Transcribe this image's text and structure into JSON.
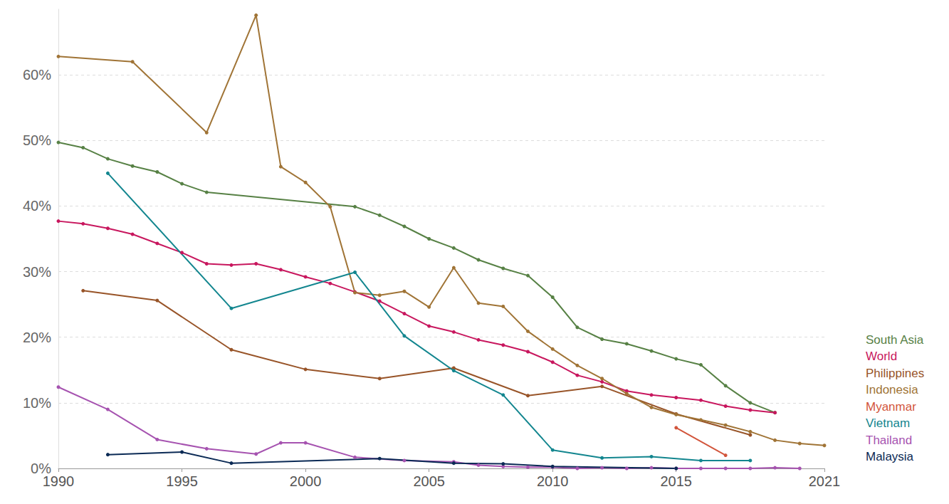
{
  "chart_data": {
    "type": "line",
    "xlim": [
      1990,
      2021
    ],
    "xticks": [
      1990,
      1995,
      2000,
      2005,
      2010,
      2015,
      2021
    ],
    "ylim": [
      0,
      70
    ],
    "yticks": [
      {
        "value": 0,
        "label": "0%"
      },
      {
        "value": 10,
        "label": "10%"
      },
      {
        "value": 20,
        "label": "20%"
      },
      {
        "value": 30,
        "label": "30%"
      },
      {
        "value": 40,
        "label": "40%"
      },
      {
        "value": 50,
        "label": "50%"
      },
      {
        "value": 60,
        "label": "60%"
      }
    ],
    "grid": true,
    "legend": "right",
    "marker": "circle",
    "series": [
      {
        "name": "South Asia",
        "color": "#578145",
        "x": [
          1990,
          1991,
          1992,
          1993,
          1994,
          1995,
          1996,
          2002,
          2003,
          2004,
          2005,
          2006,
          2007,
          2008,
          2009,
          2010,
          2011,
          2012,
          2013,
          2014,
          2015,
          2016,
          2017,
          2018,
          2019
        ],
        "values": [
          49.7,
          48.9,
          47.2,
          46.1,
          45.2,
          43.4,
          42.1,
          39.9,
          38.6,
          36.9,
          35.0,
          33.6,
          31.8,
          30.5,
          29.4,
          26.1,
          21.5,
          19.7,
          19.0,
          17.9,
          16.7,
          15.8,
          12.6,
          10.0,
          8.5
        ]
      },
      {
        "name": "World",
        "color": "#c8175e",
        "x": [
          1990,
          1991,
          1992,
          1993,
          1994,
          1995,
          1996,
          1997,
          1998,
          1999,
          2000,
          2001,
          2002,
          2003,
          2004,
          2005,
          2006,
          2007,
          2008,
          2009,
          2010,
          2011,
          2012,
          2013,
          2014,
          2015,
          2016,
          2017,
          2018,
          2019
        ],
        "values": [
          37.7,
          37.3,
          36.6,
          35.7,
          34.3,
          32.9,
          31.2,
          31.0,
          31.2,
          30.3,
          29.2,
          28.2,
          26.9,
          25.5,
          23.6,
          21.7,
          20.8,
          19.6,
          18.8,
          17.8,
          16.2,
          14.2,
          13.2,
          11.8,
          11.2,
          10.8,
          10.4,
          9.5,
          8.9,
          8.5
        ]
      },
      {
        "name": "Philippines",
        "color": "#985428",
        "x": [
          1991,
          1994,
          1997,
          2000,
          2003,
          2006,
          2009,
          2012,
          2015,
          2018
        ],
        "values": [
          27.1,
          25.6,
          18.1,
          15.1,
          13.7,
          15.3,
          11.1,
          12.5,
          8.3,
          5.1
        ]
      },
      {
        "name": "Indonesia",
        "color": "#a07436",
        "x": [
          1990,
          1993,
          1996,
          1998,
          1999,
          2000,
          2001,
          2002,
          2003,
          2004,
          2005,
          2006,
          2007,
          2008,
          2009,
          2010,
          2011,
          2012,
          2013,
          2014,
          2015,
          2016,
          2017,
          2018,
          2019,
          2020,
          2021
        ],
        "values": [
          62.8,
          62.0,
          51.2,
          69.1,
          46.0,
          43.6,
          39.9,
          26.8,
          26.4,
          27.0,
          24.6,
          30.6,
          25.2,
          24.7,
          20.9,
          18.2,
          15.7,
          13.7,
          11.4,
          9.3,
          8.2,
          7.4,
          6.6,
          5.6,
          4.3,
          3.8,
          3.5
        ]
      },
      {
        "name": "Myanmar",
        "color": "#d2553b",
        "x": [
          2015,
          2017
        ],
        "values": [
          6.2,
          2.0
        ]
      },
      {
        "name": "Vietnam",
        "color": "#13868f",
        "x": [
          1992,
          1997,
          2002,
          2004,
          2006,
          2008,
          2010,
          2012,
          2014,
          2016,
          2018
        ],
        "values": [
          45.0,
          24.4,
          29.9,
          20.2,
          14.9,
          11.2,
          2.8,
          1.6,
          1.8,
          1.2,
          1.2
        ]
      },
      {
        "name": "Thailand",
        "color": "#a653b0",
        "x": [
          1990,
          1992,
          1994,
          1996,
          1998,
          1999,
          2000,
          2002,
          2004,
          2006,
          2007,
          2008,
          2009,
          2010,
          2011,
          2012,
          2013,
          2014,
          2015,
          2016,
          2017,
          2018,
          2019,
          2020
        ],
        "values": [
          12.4,
          9.0,
          4.4,
          3.0,
          2.2,
          3.9,
          3.9,
          1.7,
          1.2,
          1.0,
          0.5,
          0.3,
          0.2,
          0.2,
          0.0,
          0.1,
          0.0,
          0.1,
          0.0,
          0.0,
          0.0,
          0.0,
          0.1,
          0.0
        ]
      },
      {
        "name": "Malaysia",
        "color": "#0b2a55",
        "x": [
          1992,
          1995,
          1997,
          2003,
          2006,
          2008,
          2010,
          2015
        ],
        "values": [
          2.1,
          2.5,
          0.8,
          1.5,
          0.8,
          0.7,
          0.3,
          0.0
        ]
      }
    ]
  }
}
